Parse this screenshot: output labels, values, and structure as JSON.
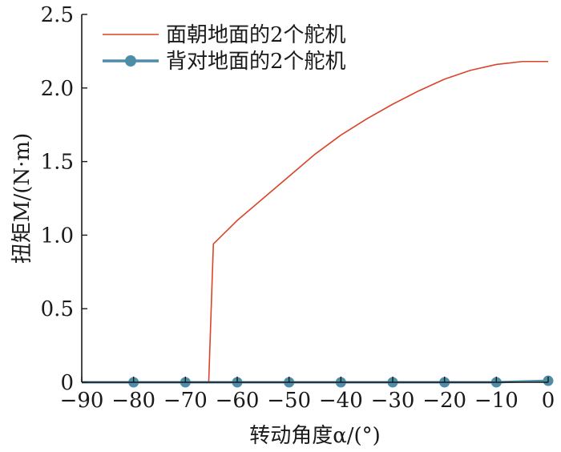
{
  "chart_data": {
    "type": "line",
    "xlabel": "转动角度α/(°)",
    "ylabel": "扭矩M/(N·m)",
    "xlim": [
      -90,
      0
    ],
    "ylim": [
      0,
      2.5
    ],
    "xticks": [
      -90,
      -80,
      -70,
      -60,
      -50,
      -40,
      -30,
      -20,
      -10,
      0
    ],
    "xtick_labels": [
      "−90",
      "−80",
      "−70",
      "−60",
      "−50",
      "−40",
      "−30",
      "−20",
      "−10",
      "0"
    ],
    "yticks": [
      0,
      0.5,
      1.0,
      1.5,
      2.0,
      2.5
    ],
    "ytick_labels": [
      "0",
      "0.5",
      "1.0",
      "1.5",
      "2.0",
      "2.5"
    ],
    "grid": false,
    "legend_position": "top-left",
    "series": [
      {
        "name": "面朝地面的2个舵机",
        "color": "#d9442b",
        "marker": "none",
        "x": [
          -90,
          -65.5,
          -64.6,
          -60,
          -55,
          -50,
          -45,
          -40,
          -35,
          -30,
          -25,
          -20,
          -15,
          -10,
          -5,
          0
        ],
        "y": [
          0,
          0,
          0.94,
          1.1,
          1.25,
          1.4,
          1.55,
          1.68,
          1.79,
          1.89,
          1.98,
          2.06,
          2.12,
          2.16,
          2.18,
          2.18
        ]
      },
      {
        "name": "背对地面的2个舵机",
        "color": "#4e8da8",
        "marker": "circle",
        "x": [
          -90,
          -80,
          -70,
          -60,
          -50,
          -40,
          -30,
          -20,
          -10,
          0
        ],
        "y": [
          0,
          0,
          0,
          0,
          0,
          0,
          0,
          0,
          0,
          0.01
        ],
        "marker_x": [
          -80,
          -70,
          -60,
          -50,
          -40,
          -30,
          -20,
          -10,
          0
        ]
      }
    ]
  }
}
